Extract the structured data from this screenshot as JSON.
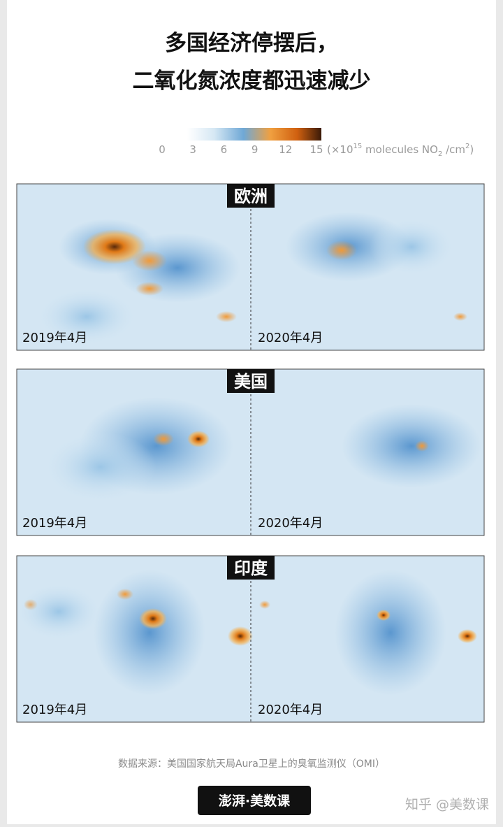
{
  "header": {
    "title_lines": [
      "多国经济停摆后，",
      "二氧化氮浓度都迅速减少"
    ]
  },
  "legend": {
    "ticks": [
      "0",
      "3",
      "6",
      "9",
      "12",
      "15"
    ],
    "unit_parts": [
      "(×10",
      "15",
      " molecules NO",
      "2",
      " /cm",
      "2",
      ")"
    ]
  },
  "panels": [
    {
      "region": "欧洲",
      "left_date": "2019年4月",
      "right_date": "2020年4月"
    },
    {
      "region": "美国",
      "left_date": "2019年4月",
      "right_date": "2020年4月"
    },
    {
      "region": "印度",
      "left_date": "2019年4月",
      "right_date": "2020年4月"
    }
  ],
  "footer": {
    "source": "数据来源：美国国家航天局Aura卫星上的臭氧监测仪（OMI）",
    "brand": "澎湃·美数课",
    "watermark": "知乎 @美数课"
  }
}
